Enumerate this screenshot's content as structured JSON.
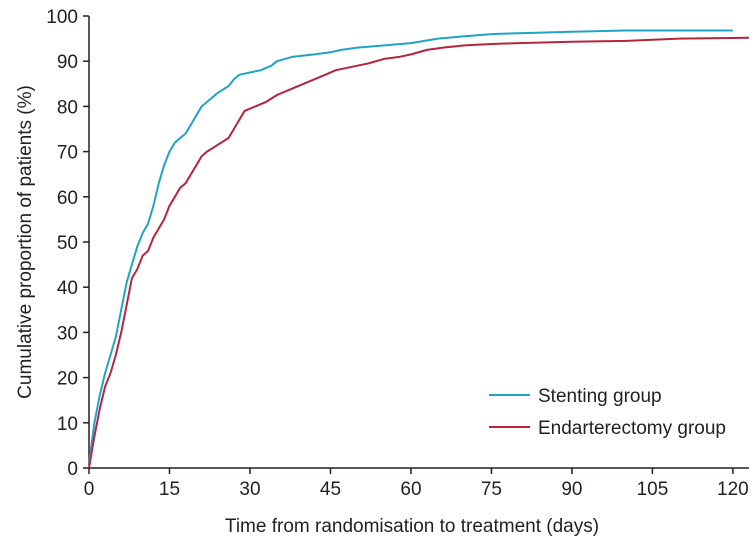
{
  "chart_data": {
    "type": "line",
    "xlabel": "Time from randomisation to treatment (days)",
    "ylabel": "Cumulative proportion of patients (%)",
    "xlim": [
      0,
      123
    ],
    "ylim": [
      0,
      100
    ],
    "x_ticks": [
      0,
      15,
      30,
      45,
      60,
      75,
      90,
      105,
      120
    ],
    "y_ticks": [
      0,
      10,
      20,
      30,
      40,
      50,
      60,
      70,
      80,
      90,
      100
    ],
    "grid": false,
    "legend_position": "bottom-right",
    "series": [
      {
        "name": "Stenting group",
        "color": "#20a4c6",
        "points": [
          [
            0,
            1
          ],
          [
            1,
            10
          ],
          [
            2,
            16
          ],
          [
            3,
            21
          ],
          [
            4,
            25
          ],
          [
            5,
            29
          ],
          [
            6,
            35
          ],
          [
            7,
            41
          ],
          [
            8,
            45
          ],
          [
            9,
            49
          ],
          [
            10,
            52
          ],
          [
            11,
            54
          ],
          [
            12,
            58
          ],
          [
            13,
            63
          ],
          [
            14,
            67
          ],
          [
            15,
            70
          ],
          [
            16,
            72
          ],
          [
            17,
            73
          ],
          [
            18,
            74
          ],
          [
            19,
            76
          ],
          [
            20,
            78
          ],
          [
            21,
            80
          ],
          [
            22,
            81
          ],
          [
            23,
            82
          ],
          [
            24,
            83
          ],
          [
            26,
            84.5
          ],
          [
            27,
            86
          ],
          [
            28,
            87
          ],
          [
            30,
            87.5
          ],
          [
            32,
            88
          ],
          [
            34,
            89
          ],
          [
            35,
            90
          ],
          [
            38,
            91
          ],
          [
            42,
            91.5
          ],
          [
            45,
            92
          ],
          [
            47,
            92.5
          ],
          [
            50,
            93
          ],
          [
            55,
            93.5
          ],
          [
            60,
            94
          ],
          [
            65,
            95
          ],
          [
            70,
            95.5
          ],
          [
            75,
            96
          ],
          [
            80,
            96.2
          ],
          [
            90,
            96.5
          ],
          [
            100,
            96.8
          ],
          [
            110,
            96.8
          ],
          [
            120,
            96.8
          ]
        ]
      },
      {
        "name": "Endarterectomy group",
        "color": "#b5253f",
        "points": [
          [
            0,
            0
          ],
          [
            1,
            7
          ],
          [
            2,
            13
          ],
          [
            3,
            18
          ],
          [
            4,
            21
          ],
          [
            5,
            25
          ],
          [
            6,
            30
          ],
          [
            7,
            36
          ],
          [
            8,
            42
          ],
          [
            9,
            44
          ],
          [
            10,
            47
          ],
          [
            11,
            48
          ],
          [
            12,
            51
          ],
          [
            13,
            53
          ],
          [
            14,
            55
          ],
          [
            15,
            58
          ],
          [
            16,
            60
          ],
          [
            17,
            62
          ],
          [
            18,
            63
          ],
          [
            19,
            65
          ],
          [
            20,
            67
          ],
          [
            21,
            69
          ],
          [
            22,
            70
          ],
          [
            24,
            71.5
          ],
          [
            26,
            73
          ],
          [
            27,
            75
          ],
          [
            28,
            77
          ],
          [
            29,
            79
          ],
          [
            31,
            80
          ],
          [
            33,
            81
          ],
          [
            35,
            82.5
          ],
          [
            38,
            84
          ],
          [
            40,
            85
          ],
          [
            42,
            86
          ],
          [
            44,
            87
          ],
          [
            46,
            88
          ],
          [
            50,
            89
          ],
          [
            52,
            89.5
          ],
          [
            55,
            90.5
          ],
          [
            58,
            91
          ],
          [
            60,
            91.5
          ],
          [
            63,
            92.5
          ],
          [
            66,
            93
          ],
          [
            70,
            93.5
          ],
          [
            75,
            93.8
          ],
          [
            80,
            94
          ],
          [
            90,
            94.3
          ],
          [
            100,
            94.5
          ],
          [
            110,
            95
          ],
          [
            123,
            95.2
          ]
        ]
      }
    ]
  }
}
